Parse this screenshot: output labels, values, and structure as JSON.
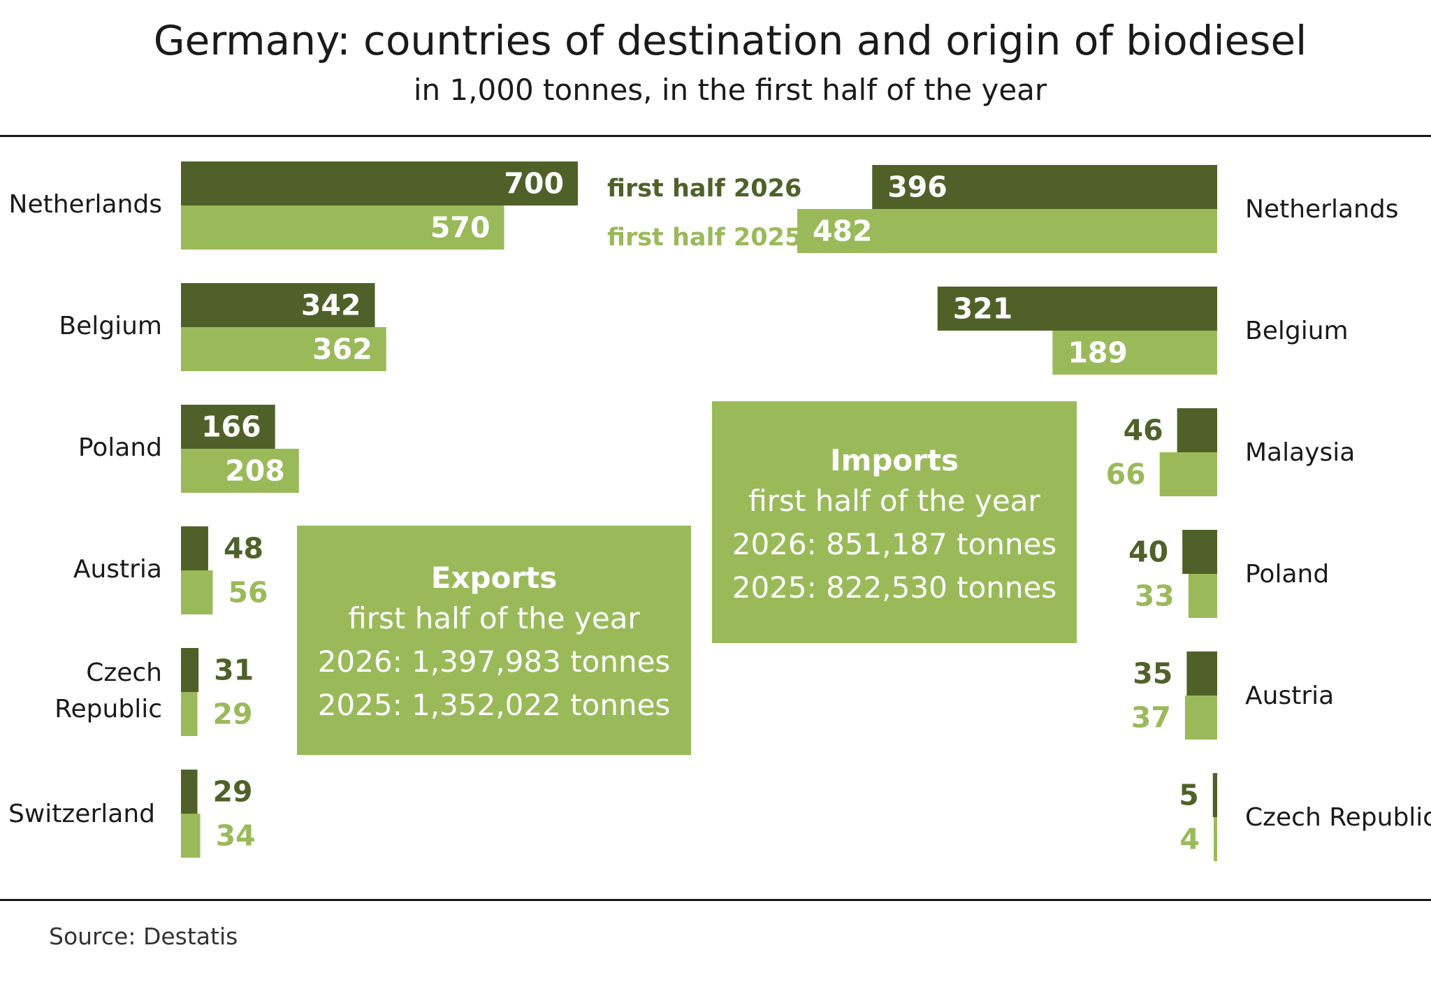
{
  "title": "Germany: countries of destination and origin of biodiesel",
  "subtitle": "in 1,000 tonnes, in the first half of the year",
  "source": "Source:  Destatis",
  "colors": {
    "dark": "#4f6129",
    "light": "#9aba5a"
  },
  "legend": {
    "series_2026": "first half 2026",
    "series_2025": "first half 2025"
  },
  "exports_box": {
    "title": "Exports",
    "line1": "first half of the year",
    "line2": "2026: 1,397,983 tonnes",
    "line3": "2025: 1,352,022 tonnes"
  },
  "imports_box": {
    "title": "Imports",
    "line1": "first half of the year",
    "line2": "2026: 851,187 tonnes",
    "line3": "2025: 822,530 tonnes"
  },
  "chart_data": [
    {
      "type": "bar",
      "title": "Exports",
      "categories": [
        [
          "Netherlands"
        ],
        [
          "Belgium"
        ],
        [
          "Poland"
        ],
        [
          "Austria"
        ],
        [
          "Czech",
          "Republic"
        ],
        [
          "Switzerland"
        ]
      ],
      "series": [
        {
          "name": "first half 2026",
          "values": [
            700,
            342,
            166,
            48,
            31,
            29
          ]
        },
        {
          "name": "first half 2025",
          "values": [
            570,
            362,
            208,
            56,
            29,
            34
          ]
        }
      ]
    },
    {
      "type": "bar",
      "title": "Imports",
      "categories": [
        [
          "Netherlands"
        ],
        [
          "Belgium"
        ],
        [
          "Malaysia"
        ],
        [
          "Poland"
        ],
        [
          "Austria"
        ],
        [
          "Czech Republic"
        ]
      ],
      "series": [
        {
          "name": "first half 2026",
          "values": [
            396,
            321,
            46,
            40,
            35,
            5
          ]
        },
        {
          "name": "first half 2025",
          "values": [
            482,
            189,
            66,
            33,
            37,
            4
          ]
        }
      ]
    }
  ]
}
